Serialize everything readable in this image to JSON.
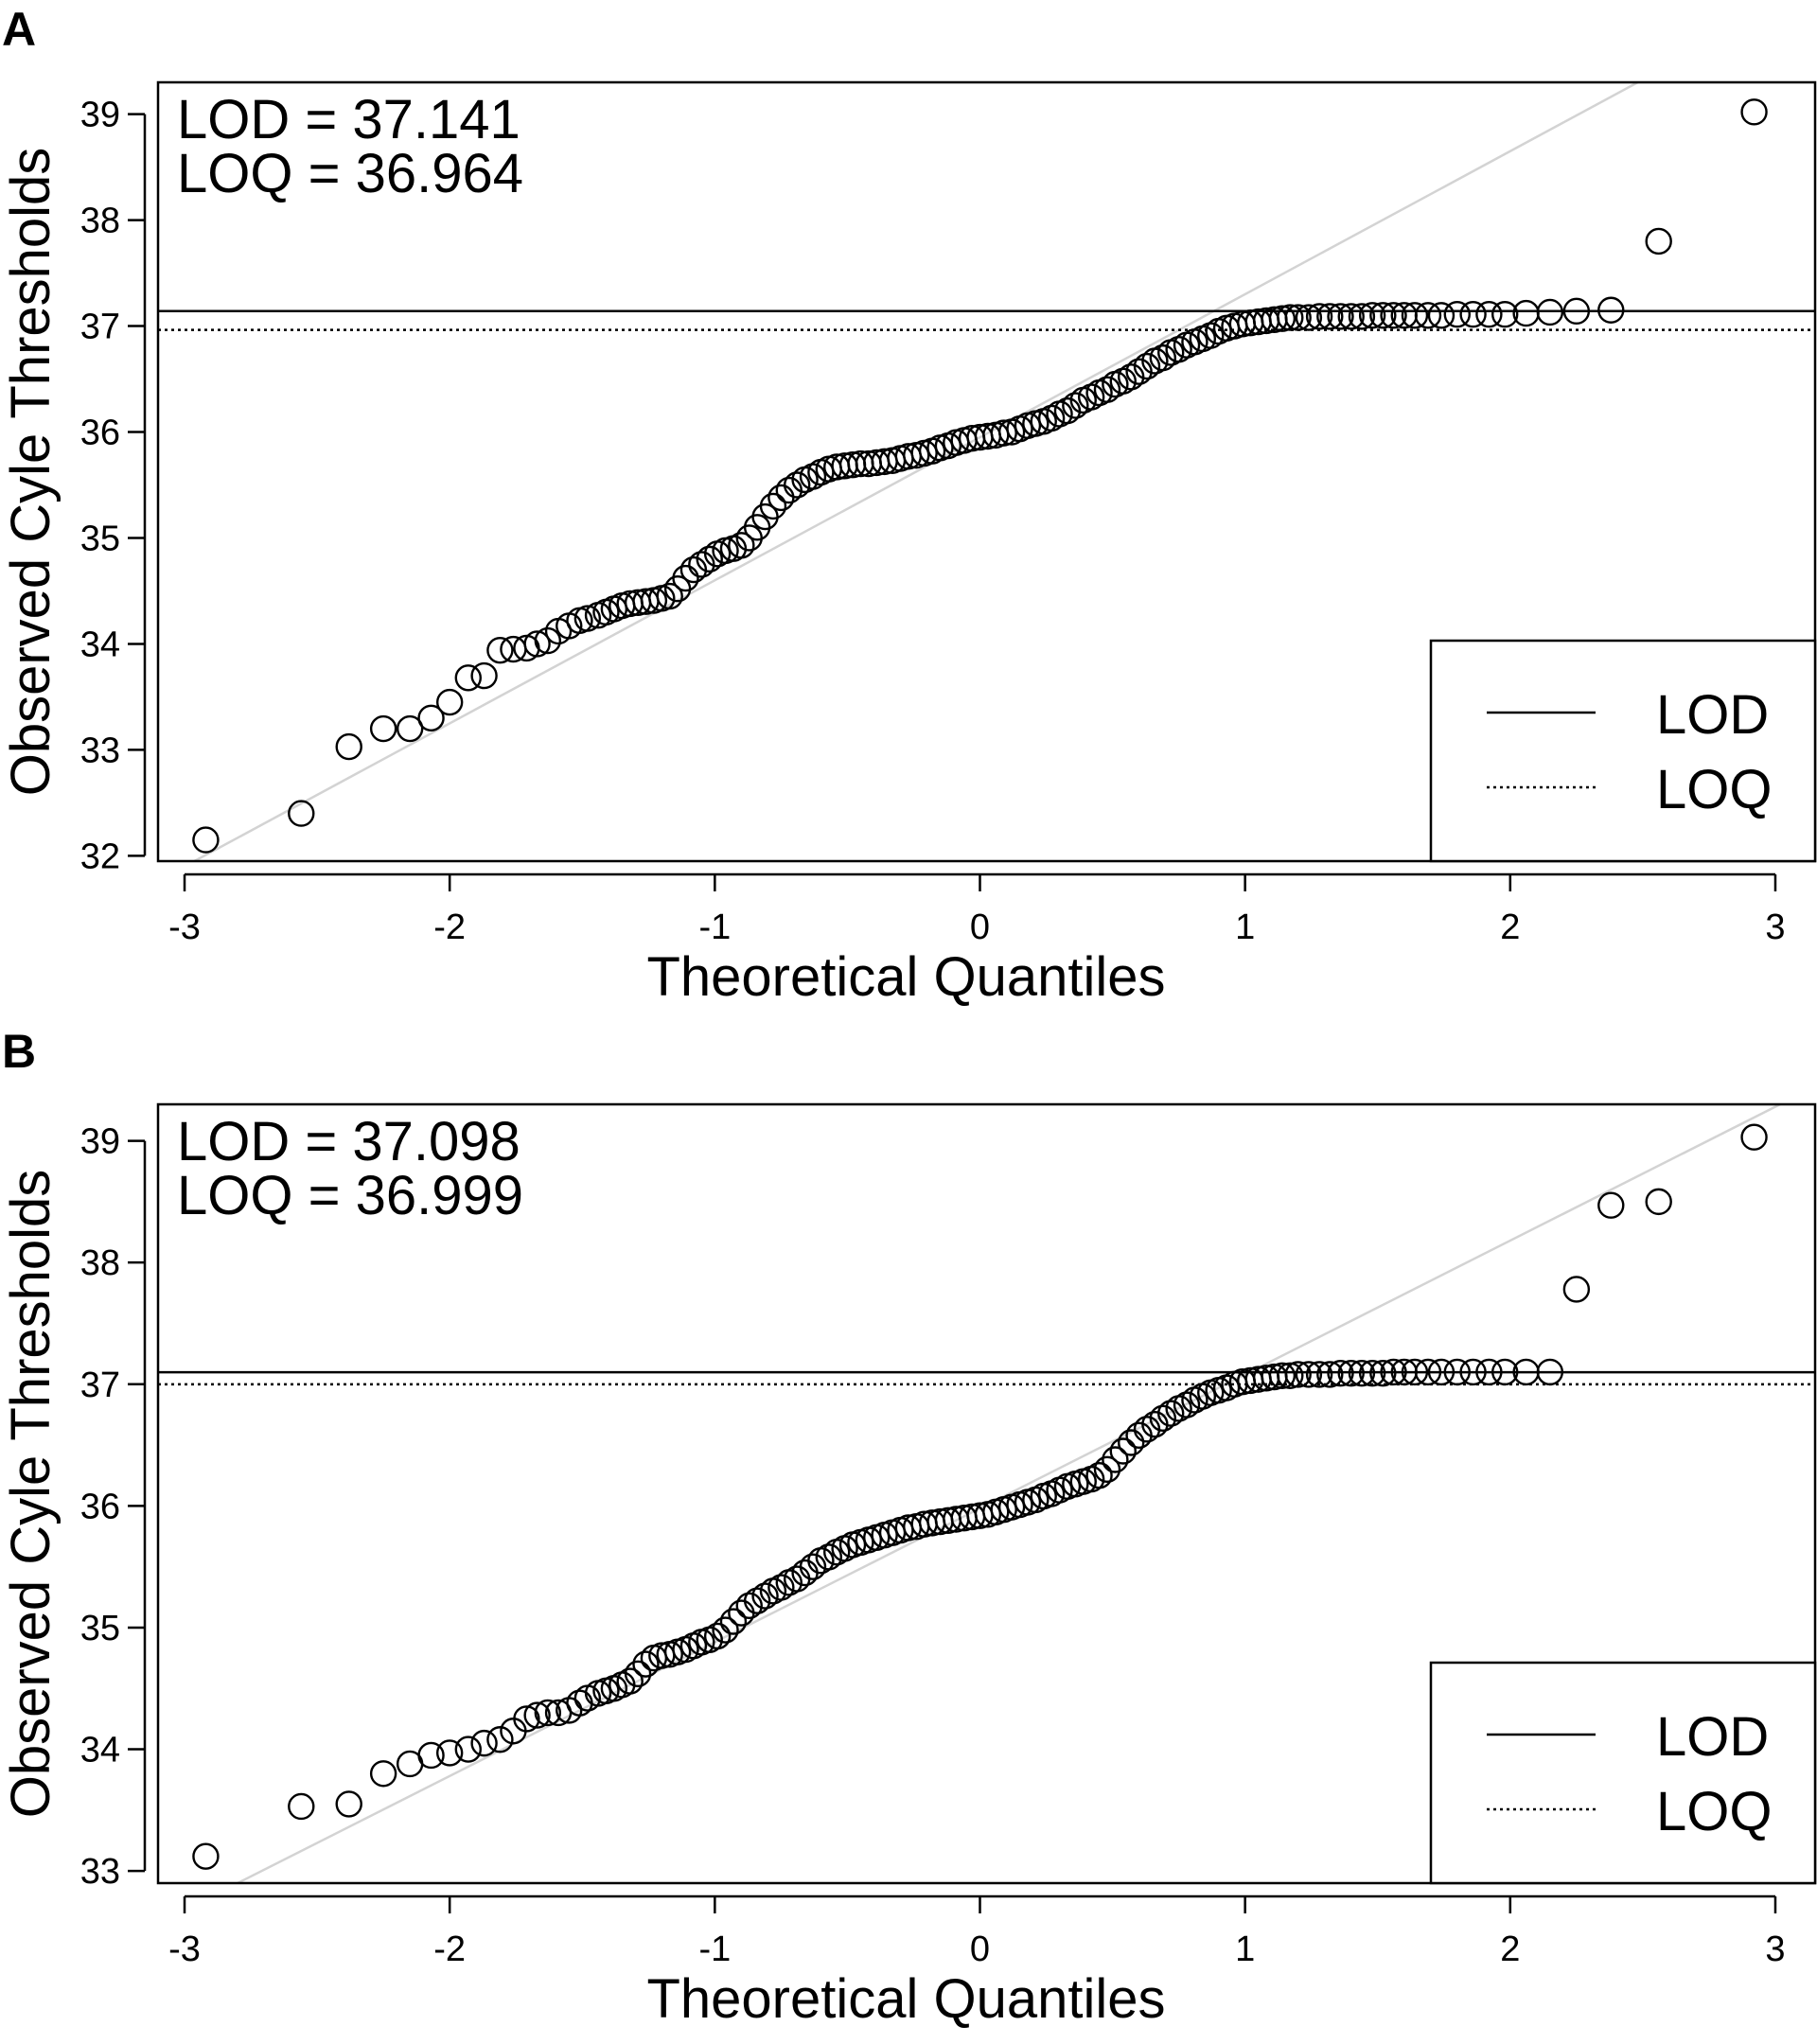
{
  "chart_data": [
    {
      "panel": "A",
      "type": "scatter",
      "xlabel": "Theoretical Quantiles",
      "ylabel": "Observed Cyle Thresholds",
      "xlim": [
        -3.1,
        3.15
      ],
      "ylim": [
        31.95,
        39.3
      ],
      "xticks": [
        "-3",
        "-2",
        "-1",
        "0",
        "1",
        "2",
        "3"
      ],
      "yticks": [
        "32",
        "33",
        "34",
        "35",
        "36",
        "37",
        "38",
        "39"
      ],
      "annotations": [
        "LOD = 37.141",
        "LOQ = 36.964"
      ],
      "hlines": [
        {
          "label": "LOD",
          "value": 37.141,
          "style": "solid"
        },
        {
          "label": "LOQ",
          "value": 36.964,
          "style": "dotted"
        }
      ],
      "reference_line": {
        "slope": 1.35,
        "intercept": 35.95,
        "color": "#d3d3d3"
      },
      "legend": {
        "placement": "bottom-right",
        "entries": [
          "LOD",
          "LOQ"
        ]
      },
      "points": [
        [
          -2.92,
          32.15
        ],
        [
          -2.56,
          32.4
        ],
        [
          -2.38,
          33.03
        ],
        [
          -2.25,
          33.2
        ],
        [
          -2.15,
          33.2
        ],
        [
          -2.07,
          33.3
        ],
        [
          -2.0,
          33.45
        ],
        [
          -1.93,
          33.68
        ],
        [
          -1.87,
          33.7
        ],
        [
          -1.81,
          33.94
        ],
        [
          -1.76,
          33.95
        ],
        [
          -1.71,
          33.96
        ],
        [
          -1.67,
          34.0
        ],
        [
          -1.63,
          34.03
        ],
        [
          -1.59,
          34.12
        ],
        [
          -1.55,
          34.17
        ],
        [
          -1.51,
          34.22
        ],
        [
          -1.48,
          34.24
        ],
        [
          -1.44,
          34.27
        ],
        [
          -1.41,
          34.3
        ],
        [
          -1.38,
          34.33
        ],
        [
          -1.35,
          34.36
        ],
        [
          -1.32,
          34.38
        ],
        [
          -1.29,
          34.39
        ],
        [
          -1.26,
          34.4
        ],
        [
          -1.23,
          34.41
        ],
        [
          -1.2,
          34.43
        ],
        [
          -1.17,
          34.45
        ],
        [
          -1.14,
          34.52
        ],
        [
          -1.11,
          34.62
        ],
        [
          -1.08,
          34.7
        ],
        [
          -1.05,
          34.75
        ],
        [
          -1.02,
          34.8
        ],
        [
          -0.99,
          34.85
        ],
        [
          -0.96,
          34.88
        ],
        [
          -0.93,
          34.9
        ],
        [
          -0.9,
          34.93
        ],
        [
          -0.87,
          35.0
        ],
        [
          -0.84,
          35.1
        ],
        [
          -0.81,
          35.2
        ],
        [
          -0.78,
          35.3
        ],
        [
          -0.75,
          35.38
        ],
        [
          -0.72,
          35.45
        ],
        [
          -0.69,
          35.5
        ],
        [
          -0.66,
          35.55
        ],
        [
          -0.63,
          35.58
        ],
        [
          -0.6,
          35.62
        ],
        [
          -0.57,
          35.65
        ],
        [
          -0.54,
          35.67
        ],
        [
          -0.51,
          35.68
        ],
        [
          -0.48,
          35.69
        ],
        [
          -0.45,
          35.7
        ],
        [
          -0.42,
          35.7
        ],
        [
          -0.39,
          35.71
        ],
        [
          -0.36,
          35.72
        ],
        [
          -0.33,
          35.73
        ],
        [
          -0.3,
          35.75
        ],
        [
          -0.27,
          35.77
        ],
        [
          -0.24,
          35.78
        ],
        [
          -0.21,
          35.8
        ],
        [
          -0.18,
          35.82
        ],
        [
          -0.15,
          35.85
        ],
        [
          -0.12,
          35.87
        ],
        [
          -0.09,
          35.9
        ],
        [
          -0.06,
          35.92
        ],
        [
          -0.03,
          35.94
        ],
        [
          0.0,
          35.95
        ],
        [
          0.03,
          35.96
        ],
        [
          0.06,
          35.97
        ],
        [
          0.09,
          35.99
        ],
        [
          0.12,
          36.0
        ],
        [
          0.15,
          36.03
        ],
        [
          0.18,
          36.06
        ],
        [
          0.21,
          36.08
        ],
        [
          0.24,
          36.1
        ],
        [
          0.27,
          36.13
        ],
        [
          0.3,
          36.17
        ],
        [
          0.33,
          36.2
        ],
        [
          0.36,
          36.25
        ],
        [
          0.39,
          36.3
        ],
        [
          0.42,
          36.33
        ],
        [
          0.45,
          36.37
        ],
        [
          0.48,
          36.4
        ],
        [
          0.51,
          36.45
        ],
        [
          0.54,
          36.48
        ],
        [
          0.57,
          36.52
        ],
        [
          0.6,
          36.57
        ],
        [
          0.63,
          36.62
        ],
        [
          0.66,
          36.67
        ],
        [
          0.69,
          36.7
        ],
        [
          0.72,
          36.75
        ],
        [
          0.75,
          36.78
        ],
        [
          0.78,
          36.82
        ],
        [
          0.81,
          36.85
        ],
        [
          0.84,
          36.88
        ],
        [
          0.87,
          36.91
        ],
        [
          0.9,
          36.95
        ],
        [
          0.93,
          36.98
        ],
        [
          0.96,
          37.0
        ],
        [
          0.99,
          37.02
        ],
        [
          1.02,
          37.03
        ],
        [
          1.05,
          37.04
        ],
        [
          1.08,
          37.05
        ],
        [
          1.11,
          37.06
        ],
        [
          1.14,
          37.07
        ],
        [
          1.17,
          37.08
        ],
        [
          1.2,
          37.08
        ],
        [
          1.24,
          37.08
        ],
        [
          1.28,
          37.09
        ],
        [
          1.32,
          37.09
        ],
        [
          1.36,
          37.09
        ],
        [
          1.4,
          37.09
        ],
        [
          1.44,
          37.09
        ],
        [
          1.48,
          37.1
        ],
        [
          1.52,
          37.1
        ],
        [
          1.56,
          37.1
        ],
        [
          1.6,
          37.1
        ],
        [
          1.64,
          37.1
        ],
        [
          1.69,
          37.1
        ],
        [
          1.74,
          37.1
        ],
        [
          1.8,
          37.11
        ],
        [
          1.86,
          37.11
        ],
        [
          1.92,
          37.11
        ],
        [
          1.98,
          37.11
        ],
        [
          2.06,
          37.12
        ],
        [
          2.15,
          37.13
        ],
        [
          2.25,
          37.14
        ],
        [
          2.38,
          37.15
        ],
        [
          2.56,
          37.8
        ],
        [
          2.92,
          39.02
        ]
      ]
    },
    {
      "panel": "B",
      "type": "scatter",
      "xlabel": "Theoretical Quantiles",
      "ylabel": "Observed Cyle Thresholds",
      "xlim": [
        -3.1,
        3.15
      ],
      "ylim": [
        32.9,
        39.3
      ],
      "xticks": [
        "-3",
        "-2",
        "-1",
        "0",
        "1",
        "2",
        "3"
      ],
      "yticks": [
        "33",
        "34",
        "35",
        "36",
        "37",
        "38",
        "39"
      ],
      "annotations": [
        "LOD = 37.098",
        "LOQ = 36.999"
      ],
      "hlines": [
        {
          "label": "LOD",
          "value": 37.098,
          "style": "solid"
        },
        {
          "label": "LOQ",
          "value": 36.999,
          "style": "dotted"
        }
      ],
      "reference_line": {
        "slope": 1.1,
        "intercept": 35.98,
        "color": "#d3d3d3"
      },
      "legend": {
        "placement": "bottom-right",
        "entries": [
          "LOD",
          "LOQ"
        ]
      },
      "points": [
        [
          -2.92,
          33.12
        ],
        [
          -2.56,
          33.53
        ],
        [
          -2.38,
          33.55
        ],
        [
          -2.25,
          33.8
        ],
        [
          -2.15,
          33.88
        ],
        [
          -2.07,
          33.95
        ],
        [
          -2.0,
          33.97
        ],
        [
          -1.93,
          34.0
        ],
        [
          -1.87,
          34.05
        ],
        [
          -1.81,
          34.08
        ],
        [
          -1.76,
          34.15
        ],
        [
          -1.71,
          34.25
        ],
        [
          -1.67,
          34.28
        ],
        [
          -1.63,
          34.3
        ],
        [
          -1.59,
          34.3
        ],
        [
          -1.55,
          34.32
        ],
        [
          -1.51,
          34.38
        ],
        [
          -1.48,
          34.42
        ],
        [
          -1.44,
          34.46
        ],
        [
          -1.41,
          34.48
        ],
        [
          -1.38,
          34.5
        ],
        [
          -1.35,
          34.53
        ],
        [
          -1.32,
          34.56
        ],
        [
          -1.29,
          34.62
        ],
        [
          -1.26,
          34.7
        ],
        [
          -1.23,
          34.75
        ],
        [
          -1.2,
          34.77
        ],
        [
          -1.17,
          34.78
        ],
        [
          -1.14,
          34.8
        ],
        [
          -1.11,
          34.82
        ],
        [
          -1.08,
          34.85
        ],
        [
          -1.05,
          34.88
        ],
        [
          -1.02,
          34.9
        ],
        [
          -0.99,
          34.93
        ],
        [
          -0.96,
          34.98
        ],
        [
          -0.93,
          35.05
        ],
        [
          -0.9,
          35.12
        ],
        [
          -0.87,
          35.18
        ],
        [
          -0.84,
          35.22
        ],
        [
          -0.81,
          35.26
        ],
        [
          -0.78,
          35.3
        ],
        [
          -0.75,
          35.33
        ],
        [
          -0.72,
          35.37
        ],
        [
          -0.69,
          35.4
        ],
        [
          -0.66,
          35.45
        ],
        [
          -0.63,
          35.5
        ],
        [
          -0.6,
          35.55
        ],
        [
          -0.57,
          35.58
        ],
        [
          -0.54,
          35.62
        ],
        [
          -0.51,
          35.65
        ],
        [
          -0.48,
          35.68
        ],
        [
          -0.45,
          35.7
        ],
        [
          -0.42,
          35.72
        ],
        [
          -0.39,
          35.74
        ],
        [
          -0.36,
          35.76
        ],
        [
          -0.33,
          35.78
        ],
        [
          -0.3,
          35.8
        ],
        [
          -0.27,
          35.82
        ],
        [
          -0.24,
          35.83
        ],
        [
          -0.21,
          35.85
        ],
        [
          -0.18,
          35.86
        ],
        [
          -0.15,
          35.87
        ],
        [
          -0.12,
          35.88
        ],
        [
          -0.09,
          35.89
        ],
        [
          -0.06,
          35.9
        ],
        [
          -0.03,
          35.91
        ],
        [
          0.0,
          35.92
        ],
        [
          0.03,
          35.93
        ],
        [
          0.06,
          35.95
        ],
        [
          0.09,
          35.97
        ],
        [
          0.12,
          35.99
        ],
        [
          0.15,
          36.01
        ],
        [
          0.18,
          36.03
        ],
        [
          0.21,
          36.05
        ],
        [
          0.24,
          36.08
        ],
        [
          0.27,
          36.1
        ],
        [
          0.3,
          36.13
        ],
        [
          0.33,
          36.16
        ],
        [
          0.36,
          36.18
        ],
        [
          0.39,
          36.2
        ],
        [
          0.42,
          36.22
        ],
        [
          0.45,
          36.25
        ],
        [
          0.48,
          36.3
        ],
        [
          0.51,
          36.38
        ],
        [
          0.54,
          36.45
        ],
        [
          0.57,
          36.52
        ],
        [
          0.6,
          36.58
        ],
        [
          0.63,
          36.63
        ],
        [
          0.66,
          36.67
        ],
        [
          0.69,
          36.72
        ],
        [
          0.72,
          36.76
        ],
        [
          0.75,
          36.8
        ],
        [
          0.78,
          36.83
        ],
        [
          0.81,
          36.87
        ],
        [
          0.84,
          36.9
        ],
        [
          0.87,
          36.93
        ],
        [
          0.9,
          36.95
        ],
        [
          0.93,
          36.97
        ],
        [
          0.96,
          37.0
        ],
        [
          0.99,
          37.02
        ],
        [
          1.02,
          37.03
        ],
        [
          1.05,
          37.04
        ],
        [
          1.08,
          37.05
        ],
        [
          1.11,
          37.06
        ],
        [
          1.14,
          37.07
        ],
        [
          1.17,
          37.07
        ],
        [
          1.2,
          37.08
        ],
        [
          1.24,
          37.08
        ],
        [
          1.28,
          37.08
        ],
        [
          1.32,
          37.08
        ],
        [
          1.36,
          37.09
        ],
        [
          1.4,
          37.09
        ],
        [
          1.44,
          37.09
        ],
        [
          1.48,
          37.09
        ],
        [
          1.52,
          37.09
        ],
        [
          1.56,
          37.1
        ],
        [
          1.6,
          37.1
        ],
        [
          1.64,
          37.1
        ],
        [
          1.69,
          37.1
        ],
        [
          1.74,
          37.1
        ],
        [
          1.8,
          37.1
        ],
        [
          1.86,
          37.1
        ],
        [
          1.92,
          37.1
        ],
        [
          1.98,
          37.1
        ],
        [
          2.06,
          37.1
        ],
        [
          2.15,
          37.1
        ],
        [
          2.25,
          37.78
        ],
        [
          2.38,
          38.47
        ],
        [
          2.56,
          38.5
        ],
        [
          2.92,
          39.03
        ]
      ]
    }
  ]
}
